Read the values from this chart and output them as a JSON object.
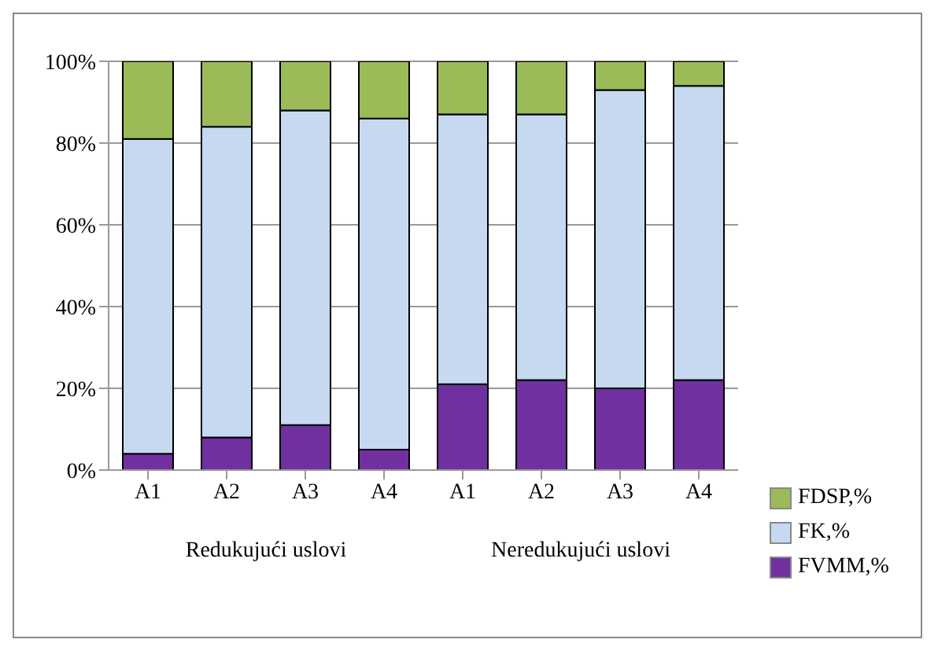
{
  "chart_data": {
    "type": "bar",
    "stacked": true,
    "categories": [
      "A1",
      "A2",
      "A3",
      "A4",
      "A1",
      "A2",
      "A3",
      "A4"
    ],
    "series": [
      {
        "name": "FVMM,%",
        "color": "#7030a0",
        "values": [
          4,
          8,
          11,
          5,
          21,
          22,
          20,
          22
        ]
      },
      {
        "name": "FK,%",
        "color": "#c6d9f1",
        "values": [
          77,
          76,
          77,
          81,
          66,
          65,
          73,
          72
        ]
      },
      {
        "name": "FDSP,%",
        "color": "#9bbb59",
        "values": [
          19,
          16,
          12,
          14,
          13,
          13,
          7,
          6
        ]
      }
    ],
    "ylim": [
      0,
      100
    ],
    "yticks": [
      {
        "value": 0,
        "label": "0%"
      },
      {
        "value": 20,
        "label": "20%"
      },
      {
        "value": 40,
        "label": "40%"
      },
      {
        "value": 60,
        "label": "60%"
      },
      {
        "value": 80,
        "label": "80%"
      },
      {
        "value": 100,
        "label": "100%"
      }
    ],
    "grid": "y",
    "legend": "right",
    "annotations": [
      "Redukujući uslovi",
      "Neredukujući uslovi"
    ]
  }
}
